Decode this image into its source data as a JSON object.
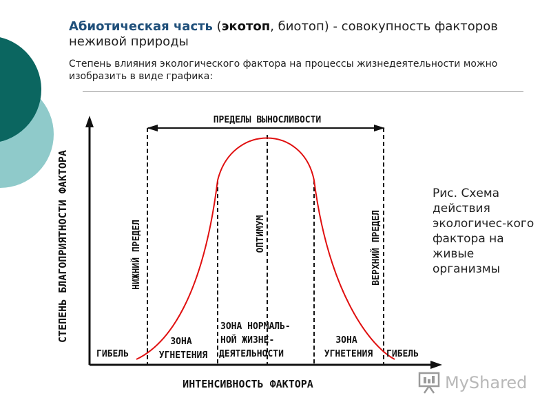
{
  "heading": {
    "term": "Абиотическая часть",
    "open_paren": " (",
    "ecotop": "экотоп",
    "rest": ", биотоп) - совокупность факторов неживой природы"
  },
  "intro": "Степень влияния экологического фактора на процессы жизнедеятельности можно изобразить в виде графика:",
  "diagram": {
    "y_axis_label": "СТЕПЕНЬ БЛАГОПРИЯТНОСТИ ФАКТОРА",
    "x_axis_label": "ИНТЕНСИВНОСТЬ ФАКТОРА",
    "tolerance_limits": "ПРЕДЕЛЫ ВЫНОСЛИВОСТИ",
    "lower_limit": "НИЖНИЙ ПРЕДЕЛ",
    "upper_limit": "ВЕРХНИЙ ПРЕДЕЛ",
    "optimum": "ОПТИМУМ",
    "death_left": "ГИБЕЛЬ",
    "death_right": "ГИБЕЛЬ",
    "oppression_left": [
      "ЗОНА",
      "УГНЕТЕНИЯ"
    ],
    "oppression_right": [
      "ЗОНА",
      "УГНЕТЕНИЯ"
    ],
    "normal_zone": [
      "ЗОНА НОРМАЛЬ-",
      "НОЙ ЖИЗНЕ-",
      "ДЕЯТЕЛЬНОСТИ"
    ],
    "curve_color": "#e01010"
  },
  "caption": "Рис. Схема действия экологичес-кого фактора на живые организмы",
  "logo": {
    "text": "MyShared"
  },
  "colors": {
    "teal_dark": "#0b6660",
    "teal_light": "#8fcaca"
  }
}
